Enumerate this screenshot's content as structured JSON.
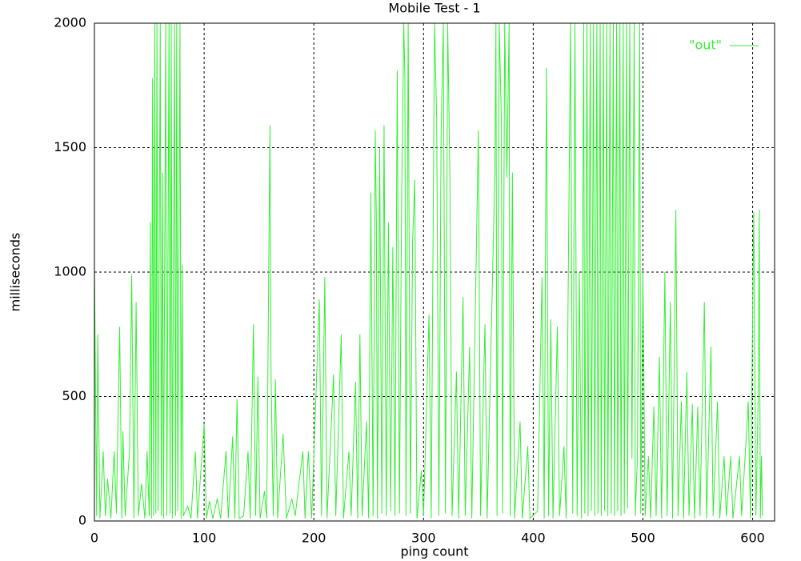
{
  "chart_data": {
    "type": "line",
    "title": "Mobile Test - 1",
    "x_label": "ping count",
    "y_label": "milliseconds",
    "xlim": [
      0,
      620
    ],
    "ylim": [
      0,
      2000
    ],
    "xticks": [
      0,
      100,
      200,
      300,
      400,
      500,
      600
    ],
    "yticks": [
      0,
      500,
      1000,
      1500,
      2000
    ],
    "grid": true,
    "legend_position": "top-right",
    "x": [
      0,
      2,
      3,
      5,
      8,
      10,
      12,
      15,
      18,
      20,
      23,
      25,
      26,
      28,
      32,
      34,
      36,
      38,
      40,
      43,
      46,
      48,
      50,
      51,
      52,
      53,
      54,
      55,
      56,
      57,
      58,
      60,
      61,
      62,
      63,
      65,
      66,
      68,
      69,
      70,
      71,
      73,
      74,
      75,
      76,
      78,
      79,
      80,
      81,
      85,
      88,
      92,
      94,
      100,
      102,
      105,
      108,
      112,
      115,
      120,
      122,
      126,
      128,
      130,
      132,
      136,
      140,
      142,
      145,
      147,
      149,
      151,
      155,
      157,
      160,
      161,
      163,
      165,
      167,
      172,
      175,
      180,
      183,
      190,
      192,
      195,
      198,
      205,
      207,
      210,
      212,
      218,
      220,
      225,
      227,
      232,
      234,
      238,
      240,
      242,
      244,
      248,
      250,
      252,
      254,
      256,
      257,
      258,
      260,
      262,
      264,
      266,
      268,
      270,
      272,
      274,
      276,
      278,
      280,
      282,
      283,
      284,
      286,
      288,
      290,
      292,
      294,
      298,
      300,
      305,
      307,
      310,
      312,
      314,
      316,
      318,
      320,
      322,
      324,
      326,
      330,
      332,
      336,
      338,
      342,
      344,
      350,
      352,
      356,
      358,
      365,
      366,
      367,
      369,
      371,
      372,
      374,
      376,
      378,
      379,
      381,
      383,
      388,
      390,
      395,
      397,
      404,
      408,
      410,
      412,
      414,
      416,
      418,
      422,
      424,
      428,
      430,
      434,
      436,
      438,
      440,
      442,
      444,
      446,
      447,
      449,
      450,
      452,
      453,
      455,
      456,
      458,
      459,
      461,
      462,
      464,
      465,
      467,
      468,
      470,
      471,
      473,
      474,
      476,
      477,
      479,
      480,
      482,
      483,
      485,
      486,
      488,
      490,
      492,
      493,
      495,
      497,
      498,
      500,
      502,
      505,
      507,
      510,
      512,
      515,
      517,
      520,
      522,
      525,
      527,
      530,
      532,
      535,
      537,
      540,
      542,
      545,
      547,
      550,
      552,
      556,
      558,
      562,
      564,
      568,
      570,
      574,
      576,
      580,
      582,
      588,
      590,
      596,
      598,
      601,
      603,
      605,
      606,
      607,
      608,
      609
    ],
    "series": [
      {
        "name": "\"out\"",
        "color": "#33ee33",
        "values": [
          1040,
          20,
          750,
          10,
          280,
          20,
          170,
          10,
          280,
          30,
          780,
          10,
          360,
          20,
          280,
          990,
          10,
          880,
          20,
          150,
          10,
          280,
          20,
          1200,
          10,
          1780,
          20,
          2000,
          30,
          2000,
          40,
          2000,
          20,
          1400,
          10,
          2000,
          20,
          2000,
          30,
          2000,
          10,
          2000,
          20,
          2000,
          40,
          2000,
          10,
          1030,
          20,
          60,
          10,
          280,
          10,
          390,
          10,
          80,
          10,
          90,
          10,
          280,
          10,
          340,
          10,
          490,
          10,
          20,
          280,
          10,
          790,
          20,
          580,
          10,
          120,
          10,
          1590,
          590,
          20,
          570,
          10,
          350,
          10,
          90,
          20,
          280,
          10,
          280,
          10,
          890,
          20,
          980,
          10,
          590,
          20,
          750,
          10,
          280,
          20,
          560,
          10,
          750,
          20,
          400,
          10,
          1320,
          20,
          1570,
          1200,
          10,
          1500,
          30,
          1590,
          20,
          1200,
          40,
          1100,
          20,
          1810,
          30,
          1270,
          2000,
          1780,
          20,
          2000,
          30,
          1120,
          1370,
          10,
          200,
          20,
          830,
          10,
          2000,
          1610,
          20,
          1550,
          2000,
          30,
          2000,
          1400,
          20,
          600,
          10,
          900,
          20,
          700,
          10,
          1570,
          20,
          790,
          10,
          1400,
          2000,
          20,
          2000,
          1600,
          30,
          2000,
          1380,
          2000,
          20,
          1400,
          10,
          400,
          10,
          300,
          10,
          40,
          980,
          10,
          1820,
          20,
          810,
          10,
          780,
          20,
          300,
          10,
          2000,
          30,
          2000,
          20,
          1000,
          10,
          2000,
          30,
          2000,
          20,
          2000,
          40,
          2000,
          20,
          2000,
          30,
          2000,
          20,
          2000,
          40,
          2000,
          20,
          2000,
          30,
          2000,
          20,
          2000,
          40,
          2000,
          20,
          2000,
          30,
          2000,
          50,
          2000,
          250,
          2000,
          20,
          260,
          2000,
          30,
          1000,
          20,
          260,
          10,
          460,
          20,
          660,
          10,
          1000,
          20,
          880,
          10,
          1250,
          20,
          480,
          10,
          600,
          20,
          470,
          10,
          460,
          20,
          880,
          10,
          700,
          20,
          480,
          10,
          260,
          20,
          260,
          10,
          260,
          20,
          480,
          10,
          1240,
          20,
          480,
          1250,
          10,
          260,
          20
        ]
      }
    ]
  }
}
